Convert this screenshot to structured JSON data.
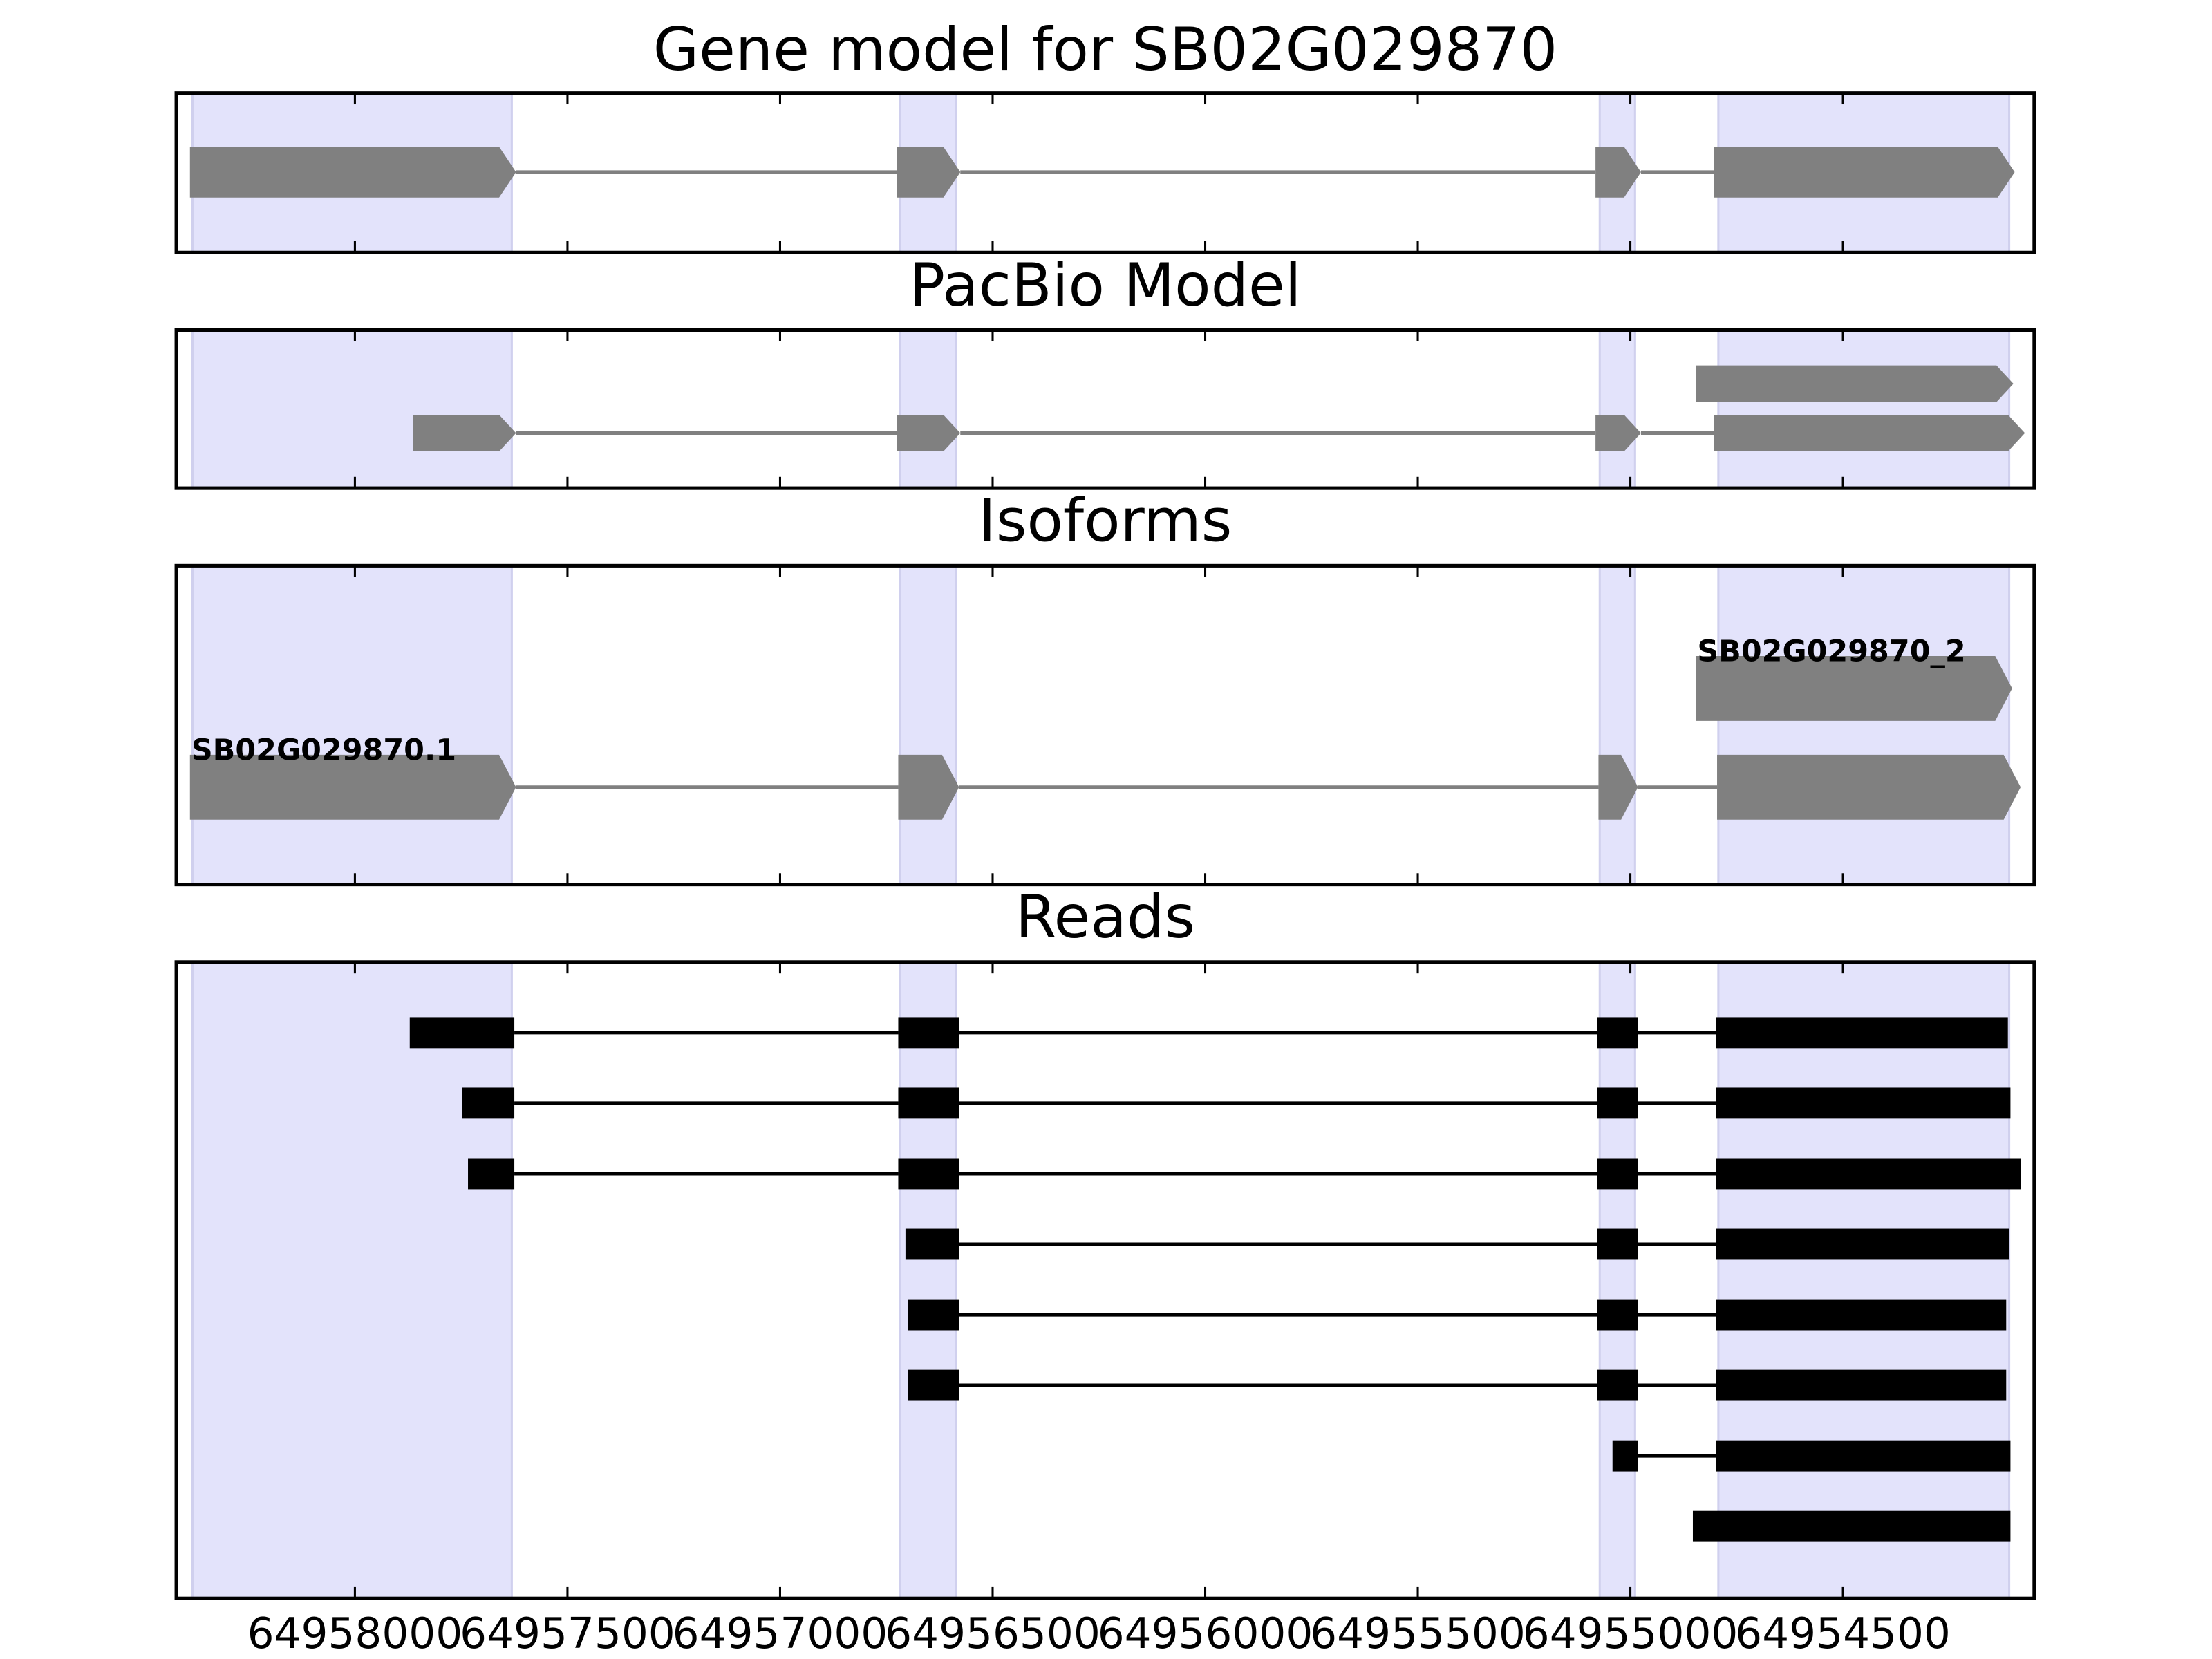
{
  "chart_data": [
    {
      "type": "gene",
      "title": "Gene model for SB02G029870",
      "color": "#808080",
      "highlight_color": "#e3e3fb",
      "xlim": [
        64958420,
        64954050
      ],
      "xticks": [
        64958000,
        64957500,
        64957000,
        64956500,
        64956000,
        64955500,
        64955000,
        64954500
      ],
      "highlights": [
        [
          64958382,
          64957631
        ],
        [
          64956718,
          64956586
        ],
        [
          64955072,
          64954989
        ],
        [
          64954793,
          64954109
        ]
      ],
      "tracks": [
        {
          "exons": [
            [
              64958388,
              64957621
            ],
            [
              64956725,
              64956576
            ],
            [
              64955082,
              64954975
            ],
            [
              64954803,
              64954096
            ]
          ]
        }
      ]
    },
    {
      "type": "gene",
      "title": "PacBio Model",
      "color": "#808080",
      "highlight_color": "#e3e3fb",
      "xlim": [
        64958420,
        64954050
      ],
      "xticks": [
        64958000,
        64957500,
        64957000,
        64956500,
        64956000,
        64955500,
        64955000,
        64954500
      ],
      "highlights": [
        [
          64958382,
          64957631
        ],
        [
          64956718,
          64956586
        ],
        [
          64955072,
          64954989
        ],
        [
          64954793,
          64954109
        ]
      ],
      "tracks": [
        {
          "exons": [
            [
              64954846,
              64954099
            ]
          ]
        },
        {
          "exons": [
            [
              64957864,
              64957621
            ],
            [
              64956725,
              64956576
            ],
            [
              64955082,
              64954975
            ],
            [
              64954803,
              64954072
            ]
          ]
        }
      ]
    },
    {
      "type": "gene",
      "title": "Isoforms",
      "color": "#808080",
      "highlight_color": "#e3e3fb",
      "xlim": [
        64958420,
        64954050
      ],
      "xticks": [
        64958000,
        64957500,
        64957000,
        64956500,
        64956000,
        64955500,
        64955000,
        64954500
      ],
      "highlights": [
        [
          64958382,
          64957631
        ],
        [
          64956718,
          64956586
        ],
        [
          64955072,
          64954989
        ],
        [
          64954793,
          64954109
        ]
      ],
      "tracks": [
        {
          "label": "SB02G029870_2",
          "exons": [
            [
              64954846,
              64954102
            ]
          ]
        },
        {
          "label": "SB02G029870.1",
          "exons": [
            [
              64958388,
              64957621
            ],
            [
              64956722,
              64956579
            ],
            [
              64955075,
              64954982
            ],
            [
              64954796,
              64954082
            ]
          ]
        }
      ]
    },
    {
      "type": "reads",
      "title": "Reads",
      "color": "#000000",
      "highlight_color": "#e3e3fb",
      "xlim": [
        64958420,
        64954050
      ],
      "xticks": [
        64958000,
        64957500,
        64957000,
        64956500,
        64956000,
        64955500,
        64955000,
        64954500
      ],
      "highlights": [
        [
          64958382,
          64957631
        ],
        [
          64956718,
          64956586
        ],
        [
          64955072,
          64954989
        ],
        [
          64954793,
          64954109
        ]
      ],
      "tracks": [
        {
          "exons": [
            [
              64957871,
              64957625
            ],
            [
              64956722,
              64956579
            ],
            [
              64955078,
              64954982
            ],
            [
              64954799,
              64954112
            ]
          ]
        },
        {
          "exons": [
            [
              64957748,
              64957625
            ],
            [
              64956722,
              64956579
            ],
            [
              64955078,
              64954982
            ],
            [
              64954799,
              64954106
            ]
          ]
        },
        {
          "exons": [
            [
              64957734,
              64957625
            ],
            [
              64956722,
              64956579
            ],
            [
              64955078,
              64954982
            ],
            [
              64954799,
              64954082
            ]
          ]
        },
        {
          "exons": [
            [
              64956705,
              64956579
            ],
            [
              64955078,
              64954982
            ],
            [
              64954799,
              64954109
            ]
          ]
        },
        {
          "exons": [
            [
              64956699,
              64956579
            ],
            [
              64955078,
              64954982
            ],
            [
              64954799,
              64954116
            ]
          ]
        },
        {
          "exons": [
            [
              64956699,
              64956579
            ],
            [
              64955078,
              64954982
            ],
            [
              64954799,
              64954116
            ]
          ]
        },
        {
          "exons": [
            [
              64955042,
              64954982
            ],
            [
              64954799,
              64954106
            ]
          ]
        },
        {
          "exons": [
            [
              64954853,
              64954106
            ]
          ]
        }
      ]
    }
  ]
}
